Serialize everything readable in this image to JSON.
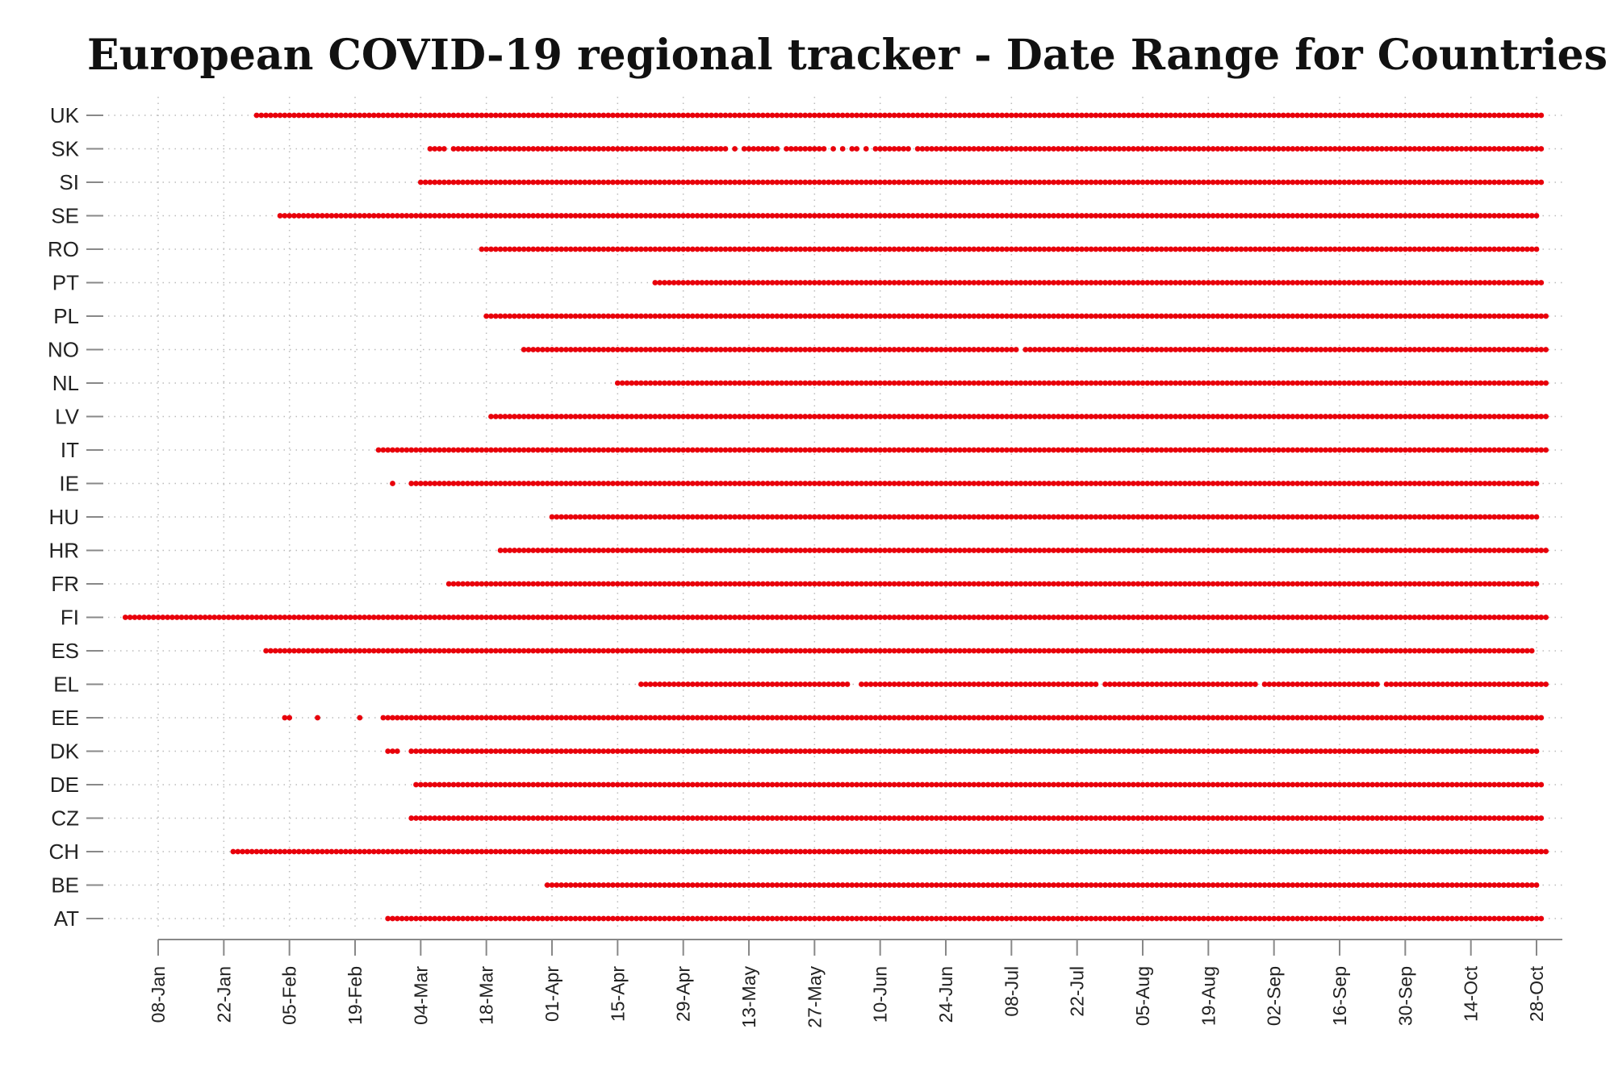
{
  "chart_data": {
    "type": "scatter",
    "title": "European COVID-19 regional tracker - Date Range for Countries",
    "xlabel": "",
    "ylabel": "",
    "year": 2020,
    "x_ticks": [
      "08-Jan",
      "22-Jan",
      "05-Feb",
      "19-Feb",
      "04-Mar",
      "18-Mar",
      "01-Apr",
      "15-Apr",
      "29-Apr",
      "13-May",
      "27-May",
      "10-Jun",
      "24-Jun",
      "08-Jul",
      "22-Jul",
      "05-Aug",
      "19-Aug",
      "02-Sep",
      "16-Sep",
      "30-Sep",
      "14-Oct",
      "28-Oct"
    ],
    "xlim": [
      "2020-01-08",
      "2020-10-30"
    ],
    "grid": true,
    "marker_color": "#e8000b",
    "categories": [
      "UK",
      "SK",
      "SI",
      "SE",
      "RO",
      "PT",
      "PL",
      "NO",
      "NL",
      "LV",
      "IT",
      "IE",
      "HU",
      "HR",
      "FR",
      "FI",
      "ES",
      "EL",
      "EE",
      "DK",
      "DE",
      "CZ",
      "CH",
      "BE",
      "AT"
    ],
    "series": [
      {
        "country": "UK",
        "ranges": [
          [
            "2020-01-29",
            "2020-10-29"
          ]
        ]
      },
      {
        "country": "SK",
        "ranges": [
          [
            "2020-03-06",
            "2020-03-09"
          ],
          [
            "2020-03-11",
            "2020-05-08"
          ],
          [
            "2020-05-10",
            "2020-05-10"
          ],
          [
            "2020-05-12",
            "2020-05-19"
          ],
          [
            "2020-05-21",
            "2020-05-29"
          ],
          [
            "2020-05-31",
            "2020-05-31"
          ],
          [
            "2020-06-02",
            "2020-06-02"
          ],
          [
            "2020-06-04",
            "2020-06-05"
          ],
          [
            "2020-06-07",
            "2020-06-07"
          ],
          [
            "2020-06-09",
            "2020-06-16"
          ],
          [
            "2020-06-18",
            "2020-10-29"
          ]
        ]
      },
      {
        "country": "SI",
        "ranges": [
          [
            "2020-03-04",
            "2020-10-29"
          ]
        ]
      },
      {
        "country": "SE",
        "ranges": [
          [
            "2020-02-03",
            "2020-10-28"
          ]
        ]
      },
      {
        "country": "RO",
        "ranges": [
          [
            "2020-03-17",
            "2020-10-28"
          ]
        ]
      },
      {
        "country": "PT",
        "ranges": [
          [
            "2020-04-23",
            "2020-10-29"
          ]
        ]
      },
      {
        "country": "PL",
        "ranges": [
          [
            "2020-03-18",
            "2020-10-30"
          ]
        ]
      },
      {
        "country": "NO",
        "ranges": [
          [
            "2020-03-26",
            "2020-07-09"
          ],
          [
            "2020-07-11",
            "2020-10-30"
          ]
        ]
      },
      {
        "country": "NL",
        "ranges": [
          [
            "2020-04-15",
            "2020-10-30"
          ]
        ]
      },
      {
        "country": "LV",
        "ranges": [
          [
            "2020-03-19",
            "2020-10-30"
          ]
        ]
      },
      {
        "country": "IT",
        "ranges": [
          [
            "2020-02-24",
            "2020-10-30"
          ]
        ]
      },
      {
        "country": "IE",
        "ranges": [
          [
            "2020-02-27",
            "2020-02-27"
          ],
          [
            "2020-03-02",
            "2020-10-28"
          ]
        ]
      },
      {
        "country": "HU",
        "ranges": [
          [
            "2020-04-01",
            "2020-10-28"
          ]
        ]
      },
      {
        "country": "HR",
        "ranges": [
          [
            "2020-03-21",
            "2020-10-30"
          ]
        ]
      },
      {
        "country": "FR",
        "ranges": [
          [
            "2020-03-10",
            "2020-10-28"
          ]
        ]
      },
      {
        "country": "FI",
        "ranges": [
          [
            "2020-01-01",
            "2020-10-30"
          ]
        ]
      },
      {
        "country": "ES",
        "ranges": [
          [
            "2020-01-31",
            "2020-10-27"
          ]
        ]
      },
      {
        "country": "EL",
        "ranges": [
          [
            "2020-04-20",
            "2020-06-03"
          ],
          [
            "2020-06-06",
            "2020-07-26"
          ],
          [
            "2020-07-28",
            "2020-08-29"
          ],
          [
            "2020-08-31",
            "2020-09-24"
          ],
          [
            "2020-09-26",
            "2020-10-30"
          ]
        ]
      },
      {
        "country": "EE",
        "ranges": [
          [
            "2020-02-04",
            "2020-02-05"
          ],
          [
            "2020-02-11",
            "2020-02-11"
          ],
          [
            "2020-02-20",
            "2020-02-20"
          ],
          [
            "2020-02-25",
            "2020-10-29"
          ]
        ]
      },
      {
        "country": "DK",
        "ranges": [
          [
            "2020-02-26",
            "2020-02-28"
          ],
          [
            "2020-03-02",
            "2020-10-28"
          ]
        ]
      },
      {
        "country": "DE",
        "ranges": [
          [
            "2020-03-03",
            "2020-10-29"
          ]
        ]
      },
      {
        "country": "CZ",
        "ranges": [
          [
            "2020-03-02",
            "2020-10-29"
          ]
        ]
      },
      {
        "country": "CH",
        "ranges": [
          [
            "2020-01-24",
            "2020-10-30"
          ]
        ]
      },
      {
        "country": "BE",
        "ranges": [
          [
            "2020-03-31",
            "2020-10-28"
          ]
        ]
      },
      {
        "country": "AT",
        "ranges": [
          [
            "2020-02-26",
            "2020-10-29"
          ]
        ]
      }
    ]
  }
}
